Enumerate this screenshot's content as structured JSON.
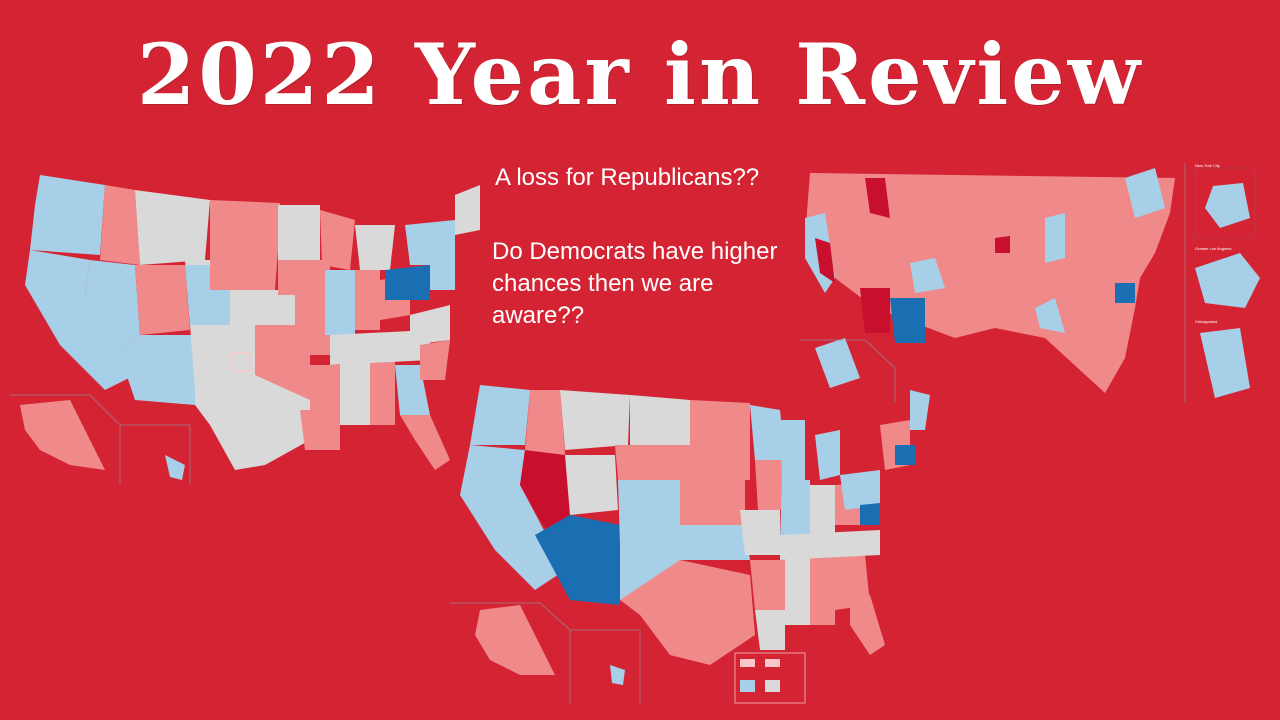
{
  "title": "2022 Year in Review",
  "captions": {
    "line1": "A loss for Republicans??",
    "line2": "Do Democrats have higher chances then we are aware??"
  },
  "colors": {
    "background": "#d42434",
    "safe_dem": "#1a6fb3",
    "lean_dem": "#a8cfe8",
    "toss_up": "#d9d9d9",
    "lean_rep": "#f08a8a",
    "safe_rep": "#c8102e",
    "title_text": "#ffffff"
  },
  "maps": [
    {
      "name": "state-map-left"
    },
    {
      "name": "county-map-right",
      "inset_labels": [
        "New York City",
        "Greater Los Angeles",
        "Chicagoland"
      ]
    },
    {
      "name": "state-map-bottom"
    }
  ]
}
